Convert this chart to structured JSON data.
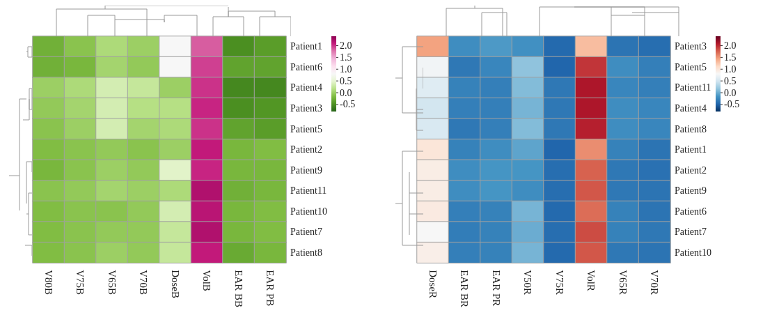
{
  "chart_data": [
    {
      "type": "heatmap",
      "categories": [
        "V80B",
        "V75B",
        "V65B",
        "V70B",
        "DoseB",
        "VolB",
        "EAR BB",
        "EAR PB"
      ],
      "y_categories": [
        "Patient1",
        "Patient6",
        "Patient4",
        "Patient3",
        "Patient5",
        "Patient2",
        "Patient9",
        "Patient11",
        "Patient10",
        "Patient7",
        "Patient8"
      ],
      "cells": [
        [
          -0.25,
          -0.1,
          0.1,
          0.0,
          0.8,
          1.85,
          -0.5,
          -0.4
        ],
        [
          -0.25,
          -0.2,
          0.05,
          -0.05,
          0.8,
          1.95,
          -0.35,
          -0.35
        ],
        [
          0.0,
          0.1,
          0.35,
          0.25,
          0.0,
          2.0,
          -0.55,
          -0.55
        ],
        [
          -0.05,
          0.05,
          0.35,
          0.15,
          0.15,
          2.05,
          -0.5,
          -0.45
        ],
        [
          -0.1,
          0.0,
          0.35,
          0.05,
          0.1,
          2.0,
          -0.35,
          -0.4
        ],
        [
          -0.15,
          -0.1,
          -0.05,
          -0.1,
          0.0,
          2.1,
          -0.2,
          -0.15
        ],
        [
          -0.2,
          -0.1,
          0.0,
          -0.05,
          0.45,
          2.05,
          -0.2,
          -0.2
        ],
        [
          -0.1,
          -0.05,
          0.05,
          0.0,
          0.1,
          2.2,
          -0.25,
          -0.2
        ],
        [
          -0.15,
          -0.1,
          -0.1,
          -0.05,
          0.35,
          2.15,
          -0.2,
          -0.15
        ],
        [
          -0.15,
          -0.1,
          -0.05,
          -0.05,
          0.25,
          2.2,
          -0.2,
          -0.15
        ],
        [
          -0.15,
          -0.1,
          0.0,
          -0.05,
          0.25,
          2.1,
          -0.3,
          -0.2
        ]
      ],
      "clim": [
        -0.8,
        2.4
      ],
      "cticks": [
        {
          "value": 2.0,
          "label": "2.0"
        },
        1.5,
        {
          "value": 1.0,
          "label": "1.0"
        },
        0.5,
        {
          "value": 0.0,
          "label": "0.0"
        },
        -0.5
      ]
    },
    {
      "type": "heatmap",
      "categories": [
        "DoseR",
        "EAR BR",
        "EAR PR",
        "V50R",
        "V75R",
        "VolR",
        "V65R",
        "V70R"
      ],
      "y_categories": [
        "Patient3",
        "Patient5",
        "Patient11",
        "Patient4",
        "Patient8",
        "Patient1",
        "Patient2",
        "Patient9",
        "Patient6",
        "Patient7",
        "Patient10"
      ],
      "cells": [
        [
          1.45,
          -0.2,
          -0.12,
          -0.18,
          -0.45,
          1.3,
          -0.38,
          -0.42
        ],
        [
          0.75,
          -0.35,
          -0.25,
          0.15,
          -0.48,
          1.95,
          -0.2,
          -0.3
        ],
        [
          0.6,
          -0.28,
          -0.3,
          0.1,
          -0.35,
          2.1,
          -0.25,
          -0.3
        ],
        [
          0.5,
          -0.3,
          -0.3,
          0.05,
          -0.35,
          2.1,
          -0.2,
          -0.25
        ],
        [
          0.55,
          -0.35,
          -0.3,
          0.1,
          -0.35,
          2.05,
          -0.2,
          -0.25
        ],
        [
          1.0,
          -0.28,
          -0.2,
          -0.05,
          -0.48,
          1.55,
          -0.28,
          -0.38
        ],
        [
          0.92,
          -0.2,
          -0.15,
          -0.15,
          -0.42,
          1.75,
          -0.35,
          -0.4
        ],
        [
          0.92,
          -0.2,
          -0.15,
          -0.2,
          -0.42,
          1.8,
          -0.35,
          -0.38
        ],
        [
          0.95,
          -0.3,
          -0.28,
          0.05,
          -0.45,
          1.7,
          -0.28,
          -0.38
        ],
        [
          0.8,
          -0.32,
          -0.28,
          0.0,
          -0.42,
          1.85,
          -0.28,
          -0.35
        ],
        [
          0.9,
          -0.3,
          -0.28,
          0.05,
          -0.45,
          1.8,
          -0.35,
          -0.38
        ]
      ],
      "clim": [
        -0.8,
        2.4
      ],
      "cticks": [
        {
          "value": 2.0,
          "label": "2.0"
        },
        1.5,
        {
          "value": 1.0,
          "label": "1.0"
        },
        0.5,
        {
          "value": 0.0,
          "label": "0.0"
        },
        -0.5
      ]
    }
  ]
}
